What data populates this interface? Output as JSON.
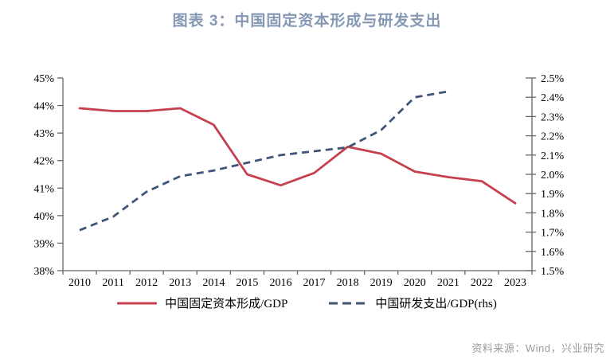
{
  "title": "图表 3：中国固定资本形成与研发支出",
  "source_note": "资料来源：Wind，兴业研究",
  "colors": {
    "title_text": "#8598B3",
    "series_fixed_capital": "#C7404E",
    "series_rnd": "#405678",
    "axis_line": "#666666",
    "tick_text": "#000000",
    "source_text": "#9B9B9B"
  },
  "legend": {
    "items": [
      {
        "label": "中国固定资本形成/GDP",
        "line_style": "solid",
        "series_index": 0
      },
      {
        "label": "中国研发支出/GDP(rhs)",
        "line_style": "dashed",
        "series_index": 1
      }
    ]
  },
  "chart_data": {
    "type": "line",
    "title": "图表 3：中国固定资本形成与研发支出",
    "categories": [
      "2010",
      "2011",
      "2012",
      "2013",
      "2014",
      "2015",
      "2016",
      "2017",
      "2018",
      "2019",
      "2020",
      "2021",
      "2022",
      "2023"
    ],
    "series": [
      {
        "name": "中国固定资本形成/GDP",
        "axis": "left",
        "line_style": "solid",
        "color": "#C7404E",
        "values": [
          43.9,
          43.8,
          43.8,
          43.9,
          43.3,
          41.5,
          41.1,
          41.55,
          42.5,
          42.25,
          41.6,
          41.4,
          41.25,
          40.45
        ]
      },
      {
        "name": "中国研发支出/GDP(rhs)",
        "axis": "right",
        "line_style": "dashed",
        "color": "#405678",
        "values": [
          1.71,
          1.78,
          1.91,
          1.99,
          2.02,
          2.06,
          2.1,
          2.12,
          2.14,
          2.23,
          2.4,
          2.43,
          null,
          null
        ]
      }
    ],
    "left_axis": {
      "min": 38,
      "max": 45,
      "step": 1,
      "tick_suffix": "%",
      "decimals": 0
    },
    "right_axis": {
      "min": 1.5,
      "max": 2.5,
      "step": 0.1,
      "tick_suffix": "%",
      "decimals": 1
    },
    "grid": false,
    "legend_position": "bottom"
  }
}
